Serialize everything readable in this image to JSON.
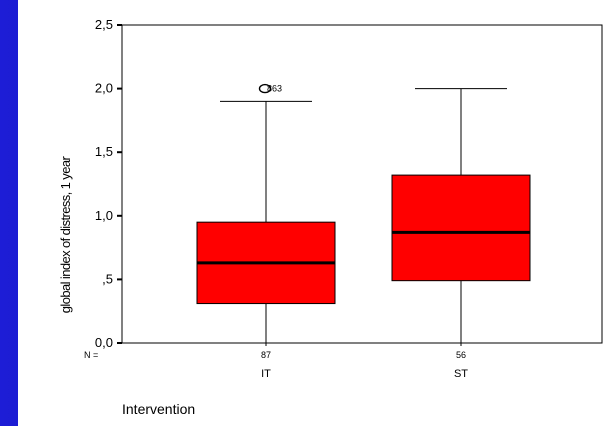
{
  "chart_data": {
    "type": "boxplot",
    "ylabel": "global index of distress, 1 year",
    "xlabel": "Intervention",
    "ylim": [
      0,
      2.5
    ],
    "yticks": [
      0,
      0.5,
      1.0,
      1.5,
      2.0,
      2.5
    ],
    "ytick_labels": [
      "0,0",
      ",5",
      "1,0",
      "1,5",
      "2,0",
      "2,5"
    ],
    "n_label": "N =",
    "box_color": "#ff0000",
    "categories": [
      "IT",
      "ST"
    ],
    "boxes": [
      {
        "category": "IT",
        "n": "87",
        "whisker_low": 0.0,
        "q1": 0.31,
        "median": 0.63,
        "q3": 0.95,
        "whisker_high": 1.9,
        "outliers": [
          {
            "value": 2.0,
            "label": "863"
          }
        ]
      },
      {
        "category": "ST",
        "n": "56",
        "whisker_low": 0.0,
        "q1": 0.49,
        "median": 0.87,
        "q3": 1.32,
        "whisker_high": 2.0,
        "outliers": []
      }
    ]
  }
}
